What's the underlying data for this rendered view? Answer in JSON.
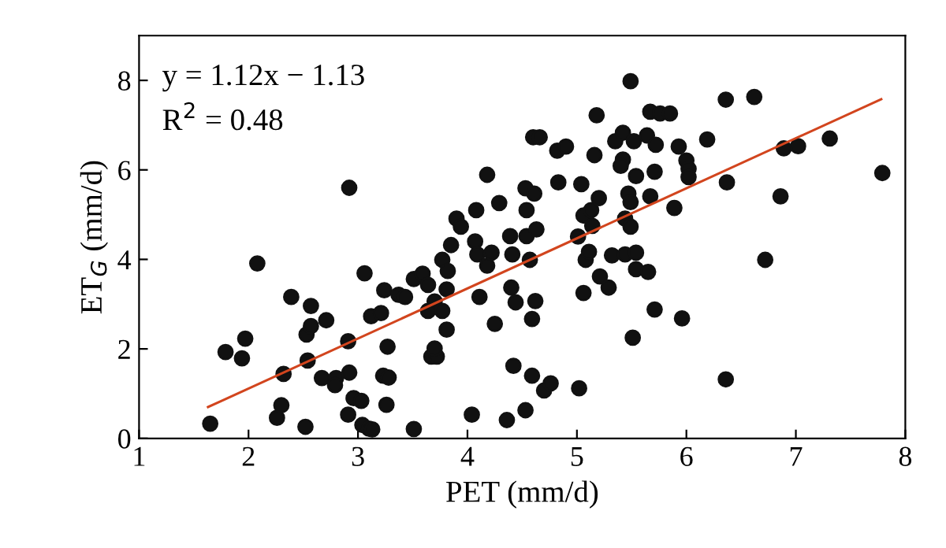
{
  "chart_data": {
    "type": "scatter",
    "xlabel": "PET (mm/d)",
    "ylabel": "ET$_{G}$ (mm/d)",
    "annotations": [
      "y = 1.12x − 1.13",
      "R$^{2}$ = 0.48"
    ],
    "xlim": [
      1,
      8
    ],
    "ylim": [
      0,
      9
    ],
    "xticks": [
      1,
      2,
      3,
      4,
      5,
      6,
      7,
      8
    ],
    "yticks": [
      0,
      2,
      4,
      6,
      8
    ],
    "grid": false,
    "legend": false,
    "marker": "circle",
    "series": [
      {
        "color": "#111111",
        "x": [
          1.65,
          1.79,
          1.97,
          1.94,
          2.08,
          2.26,
          2.3,
          2.32,
          2.39,
          2.52,
          2.54,
          2.53,
          2.57,
          2.57,
          2.71,
          2.67,
          2.8,
          2.79,
          2.91,
          2.92,
          2.92,
          2.91,
          2.96,
          3.03,
          3.04,
          3.1,
          3.13,
          3.06,
          3.12,
          3.21,
          3.24,
          3.27,
          3.23,
          3.28,
          3.26,
          3.37,
          3.43,
          3.51,
          3.51,
          3.59,
          3.64,
          3.7,
          3.64,
          3.77,
          3.67,
          3.72,
          3.7,
          3.81,
          3.77,
          3.82,
          3.81,
          3.85,
          3.9,
          3.94,
          4.04,
          4.08,
          4.07,
          4.09,
          4.11,
          4.18,
          4.18,
          4.22,
          4.25,
          4.29,
          4.36,
          4.39,
          4.4,
          4.42,
          4.44,
          4.41,
          4.53,
          4.59,
          4.7,
          4.76,
          5.02,
          4.59,
          4.62,
          4.54,
          4.57,
          4.63,
          4.54,
          4.53,
          4.61,
          4.6,
          4.66,
          4.83,
          4.82,
          4.9,
          5.04,
          5.01,
          5.06,
          5.08,
          5.11,
          5.14,
          5.06,
          5.13,
          5.2,
          5.16,
          5.18,
          5.21,
          5.29,
          5.32,
          5.44,
          5.54,
          5.54,
          5.65,
          5.51,
          5.71,
          5.96,
          5.49,
          5.35,
          5.42,
          5.42,
          5.4,
          5.54,
          5.47,
          5.49,
          5.44,
          5.49,
          5.52,
          5.64,
          5.72,
          5.71,
          5.67,
          5.67,
          5.76,
          5.85,
          5.89,
          5.93,
          6.0,
          6.02,
          6.02,
          6.19,
          6.36,
          6.62,
          6.37,
          6.36,
          6.72,
          6.86,
          6.89,
          7.02,
          7.31,
          7.79
        ],
        "values": [
          0.33,
          1.93,
          2.23,
          1.79,
          3.91,
          0.46,
          0.74,
          1.44,
          3.16,
          0.26,
          1.74,
          2.32,
          2.51,
          2.96,
          2.64,
          1.35,
          1.35,
          1.19,
          2.17,
          1.47,
          5.6,
          0.53,
          0.9,
          0.84,
          0.3,
          0.22,
          0.2,
          3.69,
          2.73,
          2.8,
          3.31,
          2.05,
          1.4,
          1.36,
          0.75,
          3.21,
          3.16,
          0.21,
          3.56,
          3.68,
          3.43,
          3.06,
          2.85,
          2.85,
          1.83,
          1.83,
          2.01,
          2.43,
          3.99,
          3.74,
          3.33,
          4.32,
          4.91,
          4.73,
          0.53,
          5.1,
          4.4,
          4.11,
          3.16,
          5.89,
          3.86,
          4.15,
          2.56,
          5.26,
          0.41,
          4.52,
          3.37,
          1.62,
          3.04,
          4.11,
          0.63,
          1.4,
          1.07,
          1.23,
          1.12,
          2.67,
          3.07,
          4.52,
          3.99,
          4.67,
          5.1,
          5.59,
          5.47,
          6.73,
          6.73,
          5.72,
          6.43,
          6.52,
          5.68,
          4.51,
          3.25,
          3.99,
          4.17,
          4.75,
          4.98,
          5.1,
          5.37,
          6.33,
          7.22,
          3.62,
          3.37,
          4.09,
          4.11,
          4.15,
          3.78,
          3.72,
          2.25,
          2.88,
          2.68,
          7.98,
          6.64,
          6.83,
          6.23,
          6.09,
          5.86,
          5.47,
          5.28,
          4.91,
          4.73,
          6.64,
          6.77,
          6.56,
          5.96,
          5.41,
          7.3,
          7.26,
          7.26,
          5.15,
          6.52,
          6.21,
          6.02,
          5.84,
          6.68,
          7.57,
          7.63,
          5.72,
          1.32,
          3.99,
          5.41,
          6.48,
          6.53,
          6.7,
          5.93
        ]
      },
      {
        "type": "line",
        "color": "#d2451e",
        "marker": "none",
        "x": [
          1.63,
          7.78
        ],
        "values": [
          0.7,
          7.58
        ]
      }
    ]
  }
}
